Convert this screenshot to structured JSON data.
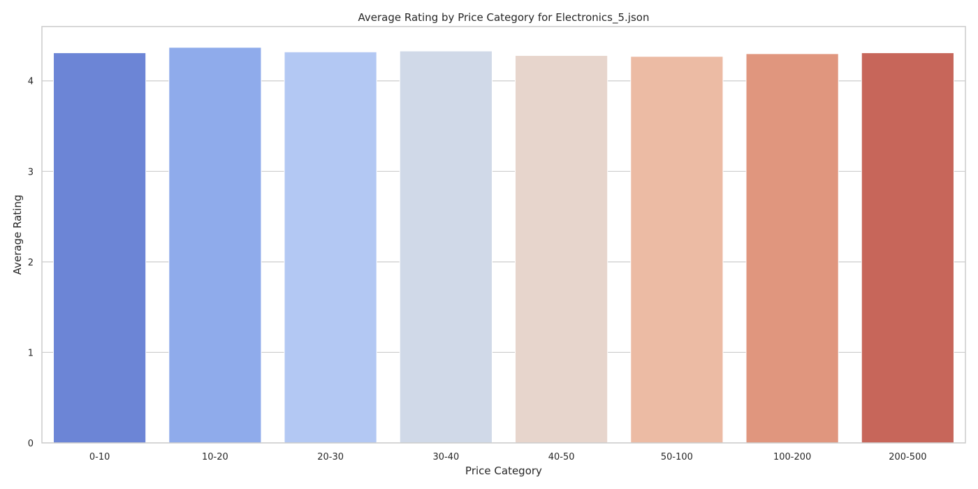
{
  "chart_data": {
    "type": "bar",
    "title": "Average Rating by Price Category for Electronics_5.json",
    "xlabel": "Price Category",
    "ylabel": "Average Rating",
    "categories": [
      "0-10",
      "10-20",
      "20-30",
      "30-40",
      "40-50",
      "50-100",
      "100-200",
      "200-500"
    ],
    "values": [
      4.31,
      4.37,
      4.32,
      4.33,
      4.28,
      4.27,
      4.3,
      4.31
    ],
    "ylim": [
      0,
      4.6
    ],
    "yticks": [
      0,
      1,
      2,
      3,
      4
    ],
    "grid": "horizontal",
    "legend": "none",
    "colors": [
      "#6c85d6",
      "#8fabeb",
      "#b3c8f3",
      "#d0d9e8",
      "#e7d5cc",
      "#ecbba4",
      "#e0967e",
      "#c7665a"
    ]
  }
}
